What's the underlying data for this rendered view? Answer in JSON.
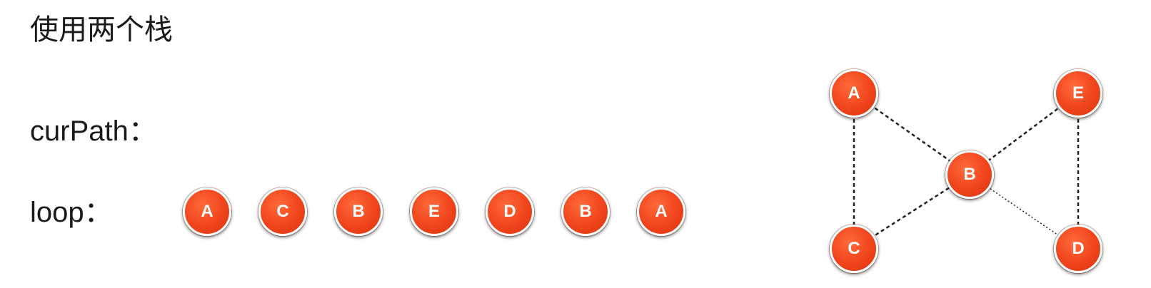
{
  "title": "使用两个栈",
  "labels": {
    "cur_path": "curPath：",
    "loop": "loop："
  },
  "loop_nodes": [
    "A",
    "C",
    "B",
    "E",
    "D",
    "B",
    "A"
  ],
  "graph": {
    "nodes": {
      "a": "A",
      "b": "B",
      "c": "C",
      "d": "D",
      "e": "E"
    },
    "edges": [
      {
        "from": "A",
        "to": "B",
        "style": "dashed"
      },
      {
        "from": "A",
        "to": "C",
        "style": "dashed"
      },
      {
        "from": "E",
        "to": "B",
        "style": "dashed"
      },
      {
        "from": "E",
        "to": "D",
        "style": "dashed"
      },
      {
        "from": "C",
        "to": "B",
        "style": "dashed"
      },
      {
        "from": "B",
        "to": "D",
        "style": "dotted"
      }
    ]
  },
  "colors": {
    "node_fill": "#f0441c",
    "node_text": "#ffffff",
    "edge": "#222222"
  }
}
